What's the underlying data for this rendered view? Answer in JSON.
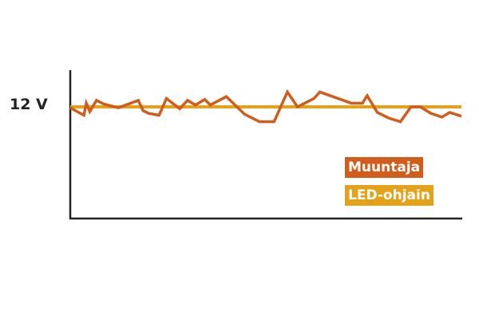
{
  "chart_data": {
    "type": "line",
    "title": "",
    "xlabel": "",
    "ylabel": "",
    "ytick_label": "12 V",
    "ytick_value": 12,
    "ylim": [
      0,
      16
    ],
    "xlim": [
      0,
      100
    ],
    "grid": false,
    "legend_placement": "right",
    "series": [
      {
        "name": "Muuntaja",
        "color": "#d25c1c",
        "x": [
          0,
          3.5,
          4.1,
          5.0,
          6.7,
          8.6,
          12.3,
          17.4,
          18.6,
          20.1,
          22.7,
          24.6,
          28.0,
          30.0,
          32.0,
          34.4,
          35.8,
          39.9,
          44.6,
          48.4,
          52.1,
          55.5,
          58.1,
          62.3,
          63.8,
          71.8,
          74.7,
          75.9,
          78.5,
          81.4,
          84.4,
          87.1,
          89.5,
          92.2,
          95.0,
          97.0,
          100
        ],
        "y": [
          11.9,
          11.1,
          12.4,
          11.5,
          12.7,
          12.3,
          11.9,
          12.7,
          11.6,
          11.3,
          11.1,
          12.9,
          11.8,
          12.7,
          12.2,
          12.8,
          12.2,
          13.1,
          11.2,
          10.4,
          10.4,
          13.6,
          12.0,
          12.9,
          13.6,
          12.4,
          12.4,
          13.2,
          11.4,
          10.8,
          10.4,
          12.0,
          12.0,
          11.3,
          10.9,
          11.4,
          11.0
        ]
      },
      {
        "name": "LED-ohjain",
        "color": "#e3a21a",
        "x": [
          0,
          100
        ],
        "y": [
          12,
          12
        ]
      }
    ]
  }
}
